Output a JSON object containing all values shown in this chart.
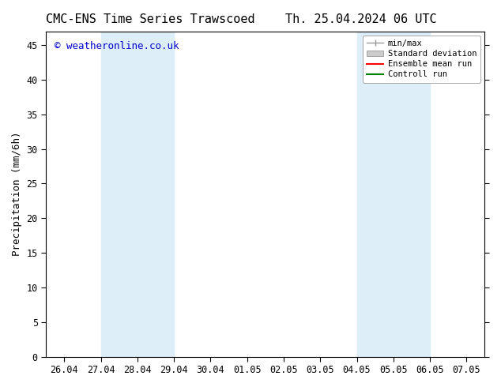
{
  "title_left": "CMC-ENS Time Series Trawscoed",
  "title_right": "Th. 25.04.2024 06 UTC",
  "ylabel": "Precipitation (mm/6h)",
  "watermark": "© weatheronline.co.uk",
  "ylim": [
    0,
    47
  ],
  "yticks": [
    0,
    5,
    10,
    15,
    20,
    25,
    30,
    35,
    40,
    45
  ],
  "xtick_labels": [
    "26.04",
    "27.04",
    "28.04",
    "29.04",
    "30.04",
    "01.05",
    "02.05",
    "03.05",
    "04.05",
    "05.05",
    "06.05",
    "07.05"
  ],
  "xtick_positions": [
    0,
    1,
    2,
    3,
    4,
    5,
    6,
    7,
    8,
    9,
    10,
    11
  ],
  "shaded_regions": [
    {
      "x_start": 1,
      "x_end": 3,
      "color": "#ddeef8"
    },
    {
      "x_start": 8,
      "x_end": 10,
      "color": "#ddeef8"
    }
  ],
  "background_color": "#ffffff",
  "plot_bg_color": "#ffffff",
  "legend_items": [
    {
      "label": "min/max",
      "color": "#999999",
      "lw": 1.0,
      "style": "line_with_cap"
    },
    {
      "label": "Standard deviation",
      "color": "#cccccc",
      "lw": 8,
      "style": "bar"
    },
    {
      "label": "Ensemble mean run",
      "color": "#ff0000",
      "lw": 1.5,
      "style": "line"
    },
    {
      "label": "Controll run",
      "color": "#008000",
      "lw": 1.5,
      "style": "line"
    }
  ],
  "font_color": "#000000",
  "title_fontsize": 11,
  "tick_fontsize": 8.5,
  "ylabel_fontsize": 9,
  "watermark_color": "#0000cc",
  "watermark_fontsize": 9
}
